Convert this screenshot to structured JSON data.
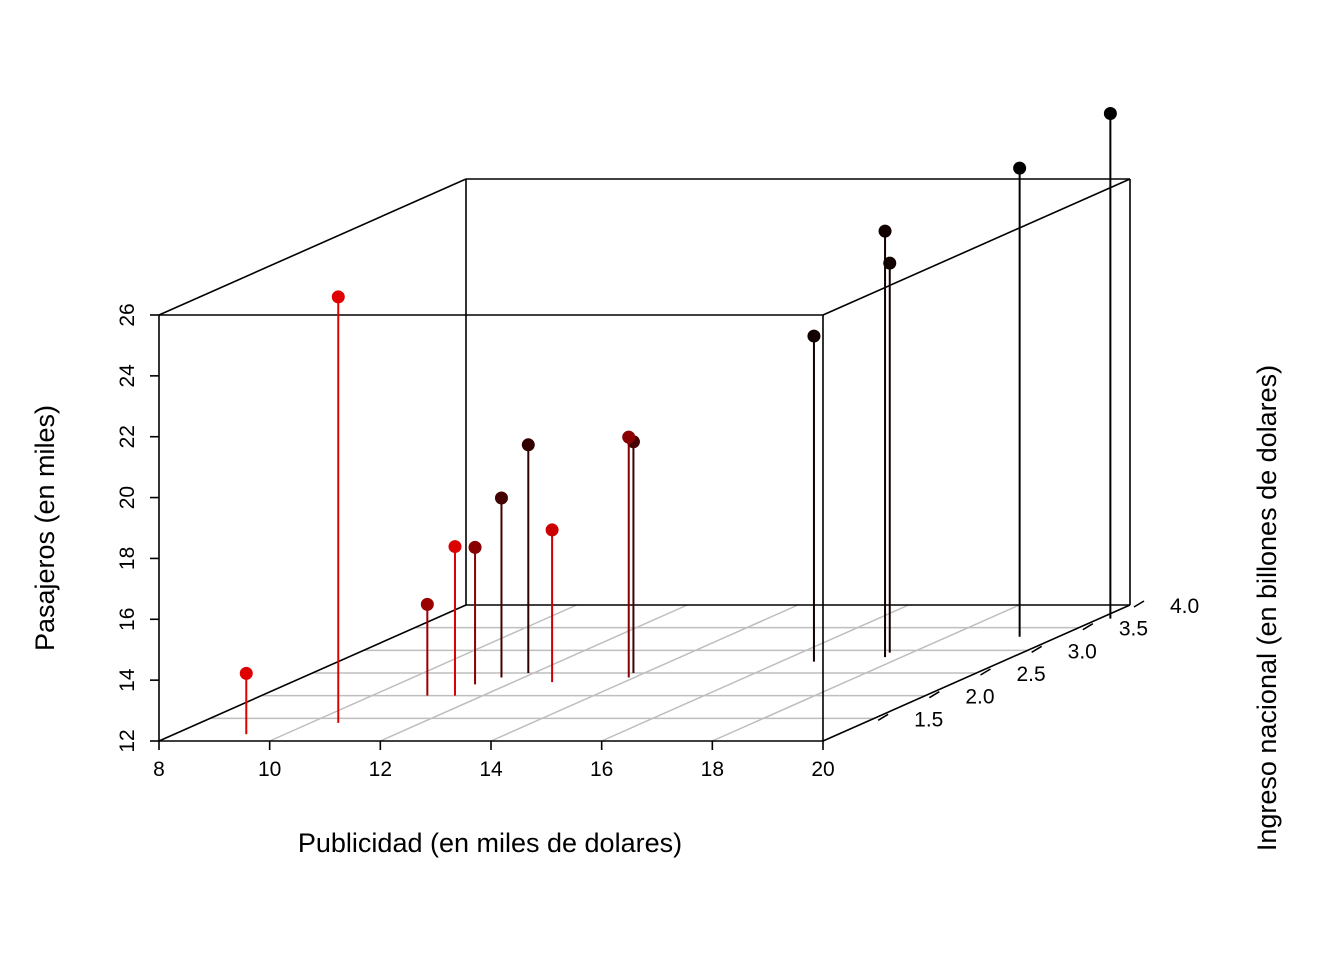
{
  "chart_data": {
    "type": "scatter3d",
    "title": "",
    "xlabel": "Publicidad (en miles de dolares)",
    "ylabel": "Ingreso nacional (en billones de dolares)",
    "zlabel": "Pasajeros (en miles)",
    "xlim": [
      8,
      20
    ],
    "ylim": [
      1.0,
      4.0
    ],
    "zlim": [
      12,
      26
    ],
    "x_ticks": [
      "8",
      "10",
      "12",
      "14",
      "16",
      "18",
      "20"
    ],
    "y_ticks": [
      "1.5",
      "2.0",
      "2.5",
      "3.0",
      "3.5",
      "4.0"
    ],
    "z_ticks": [
      "12",
      "14",
      "16",
      "18",
      "20",
      "22",
      "24",
      "26"
    ],
    "grid": true,
    "point_type": "lollipop",
    "points": [
      {
        "x": 9.3,
        "y": 1.15,
        "z": 14.0,
        "color": "#e00000"
      },
      {
        "x": 10.5,
        "y": 1.4,
        "z": 26.0,
        "color": "#e00000"
      },
      {
        "x": 11.0,
        "y": 2.0,
        "z": 15.0,
        "color": "#990000"
      },
      {
        "x": 11.4,
        "y": 2.25,
        "z": 16.5,
        "color": "#880000"
      },
      {
        "x": 11.5,
        "y": 2.0,
        "z": 16.9,
        "color": "#dd0000"
      },
      {
        "x": 11.6,
        "y": 2.4,
        "z": 17.9,
        "color": "#440000"
      },
      {
        "x": 11.9,
        "y": 2.5,
        "z": 19.5,
        "color": "#330000"
      },
      {
        "x": 12.7,
        "y": 2.3,
        "z": 17.0,
        "color": "#cc0000"
      },
      {
        "x": 13.8,
        "y": 2.5,
        "z": 19.6,
        "color": "#440000"
      },
      {
        "x": 13.9,
        "y": 2.4,
        "z": 19.9,
        "color": "#880000"
      },
      {
        "x": 16.6,
        "y": 2.75,
        "z": 22.7,
        "color": "#110000"
      },
      {
        "x": 17.6,
        "y": 2.95,
        "z": 24.8,
        "color": "#110000"
      },
      {
        "x": 17.7,
        "y": 2.85,
        "z": 26.0,
        "color": "#110000"
      },
      {
        "x": 19.3,
        "y": 3.3,
        "z": 27.4,
        "color": "#000000"
      },
      {
        "x": 20.2,
        "y": 3.7,
        "z": 28.6,
        "color": "#000000"
      }
    ]
  }
}
